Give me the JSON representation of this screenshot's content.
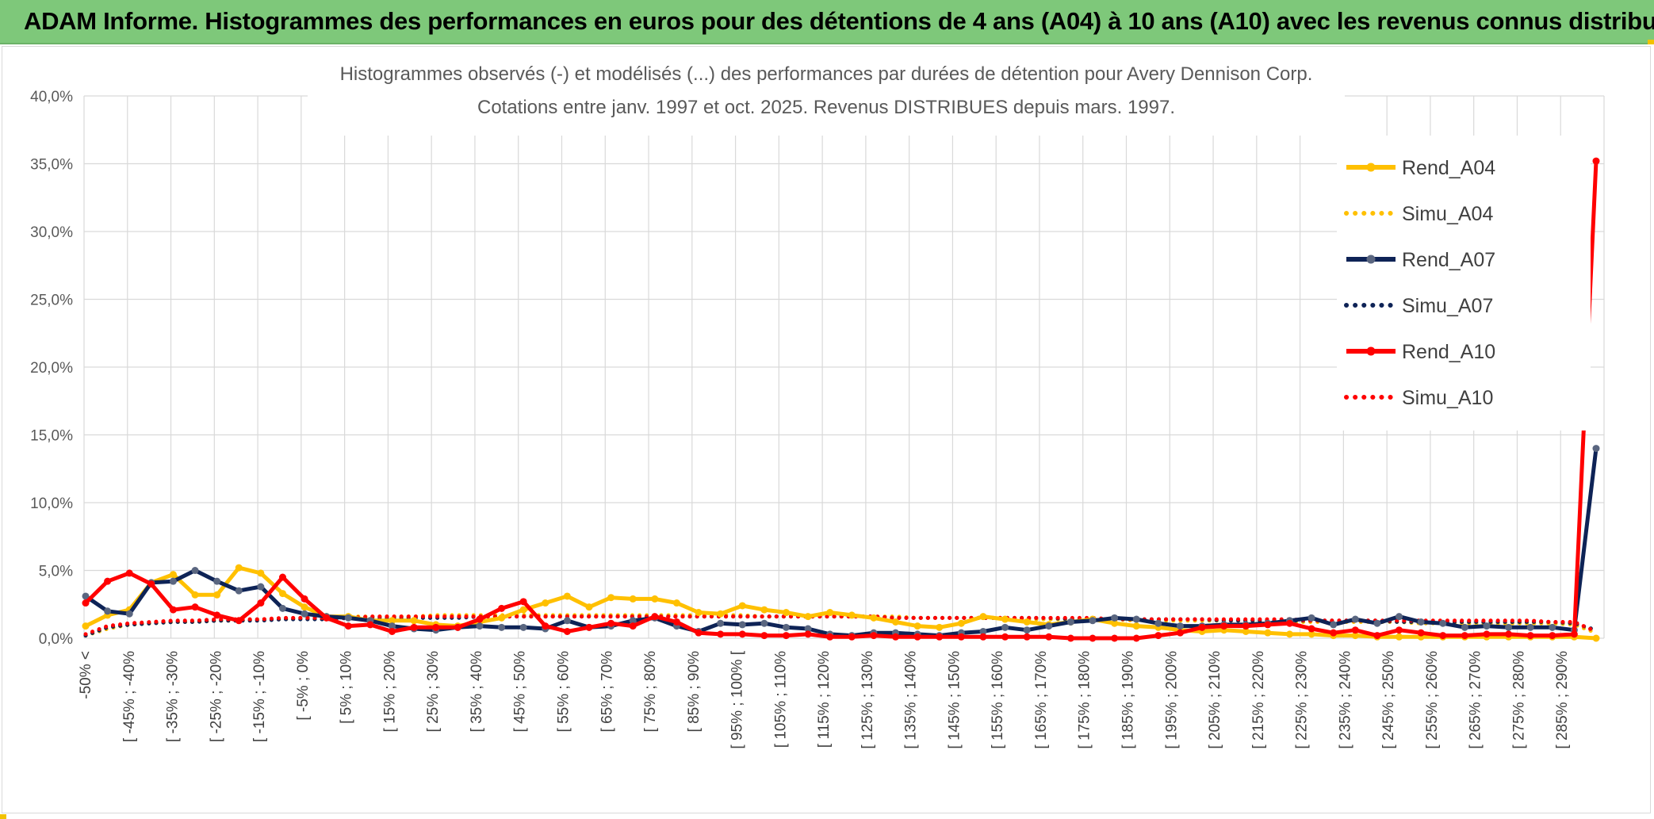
{
  "banner": {
    "title": "ADAM Informe. Histogrammes des performances en euros pour des détentions de 4 ans (A04) à 10 ans (A10) avec les revenus connus distribués"
  },
  "colors": {
    "banner_bg": "#7ec87a",
    "A04": "#ffc000",
    "A07": "#0e2356",
    "A07_marker": "#5a6680",
    "A10": "#ff0000"
  },
  "chart_data": {
    "type": "line",
    "title": "Histogrammes observés (-) et modélisés (...) des performances par durées de détention pour Avery Dennison Corp.",
    "subtitle": "Cotations entre janv. 1997 et oct. 2025. Revenus DISTRIBUES depuis mars. 1997.",
    "ylim": [
      0,
      40
    ],
    "yticks": [
      "0,0%",
      "5,0%",
      "10,0%",
      "15,0%",
      "20,0%",
      "25,0%",
      "30,0%",
      "35,0%",
      "40,0%"
    ],
    "xlabels": [
      "-50% <",
      "[ -45% ; -40%",
      "[ -35% ; -30%",
      "[ -25% ; -20%",
      "[ -15% ; -10%",
      "[ -5% ; 0%",
      "[ 5% ; 10%",
      "[ 15% ; 20%",
      "[ 25% ; 30%",
      "[ 35% ; 40%",
      "[ 45% ; 50%",
      "[ 55% ; 60%",
      "[ 65% ; 70%",
      "[ 75% ; 80%",
      "[ 85% ; 90%",
      "[ 95% ; 100% [",
      "[ 105% ; 110%",
      "[ 115% ; 120%",
      "[ 125% ; 130%",
      "[ 135% ; 140%",
      "[ 145% ; 150%",
      "[ 155% ; 160%",
      "[ 165% ; 170%",
      "[ 175% ; 180%",
      "[ 185% ; 190%",
      "[ 195% ; 200%",
      "[ 205% ; 210%",
      "[ 215% ; 220%",
      "[ 225% ; 230%",
      "[ 235% ; 240%",
      "[ 245% ; 250%",
      "[ 255% ; 260%",
      "[ 265% ; 270%",
      "[ 275% ; 280%",
      "[ 285% ; 290%"
    ],
    "legend_position": "right",
    "grid": true,
    "series": [
      {
        "name": "Rend_A04",
        "style": "solid",
        "color": "#ffc000",
        "values": [
          0.9,
          1.7,
          2.1,
          4.1,
          4.7,
          3.2,
          3.2,
          5.2,
          4.8,
          3.3,
          2.3,
          1.6,
          1.6,
          1.3,
          1.3,
          1.3,
          1.0,
          0.9,
          1.2,
          1.5,
          2.1,
          2.6,
          3.1,
          2.3,
          3.0,
          2.9,
          2.9,
          2.6,
          1.9,
          1.8,
          2.4,
          2.1,
          1.9,
          1.6,
          1.9,
          1.7,
          1.5,
          1.2,
          0.9,
          0.8,
          1.1,
          1.6,
          1.4,
          1.2,
          1.0,
          1.2,
          1.4,
          1.1,
          0.9,
          0.8,
          0.6,
          0.5,
          0.6,
          0.5,
          0.4,
          0.3,
          0.3,
          0.2,
          0.2,
          0.1,
          0.1,
          0.1,
          0.1,
          0.1,
          0.1,
          0.1,
          0.1,
          0.1,
          0.1,
          0.0
        ]
      },
      {
        "name": "Simu_A04",
        "style": "dotted",
        "color": "#ffc000",
        "values": [
          0.2,
          0.7,
          1.0,
          1.1,
          1.2,
          1.2,
          1.3,
          1.3,
          1.4,
          1.4,
          1.5,
          1.5,
          1.6,
          1.6,
          1.6,
          1.6,
          1.7,
          1.7,
          1.7,
          1.7,
          1.7,
          1.7,
          1.7,
          1.7,
          1.7,
          1.7,
          1.7,
          1.7,
          1.7,
          1.7,
          1.7,
          1.6,
          1.6,
          1.6,
          1.6,
          1.6,
          1.6,
          1.6,
          1.5,
          1.5,
          1.5,
          1.5,
          1.5,
          1.4,
          1.4,
          1.4,
          1.4,
          1.4,
          1.3,
          1.3,
          1.3,
          1.3,
          1.3,
          1.3,
          1.2,
          1.2,
          1.2,
          1.2,
          1.2,
          1.2,
          1.2,
          1.1,
          1.1,
          1.1,
          1.1,
          1.1,
          1.1,
          1.1,
          1.0,
          0.4
        ]
      },
      {
        "name": "Rend_A07",
        "style": "solid",
        "color": "#0e2356",
        "values": [
          3.1,
          2.0,
          1.8,
          4.1,
          4.2,
          5.0,
          4.2,
          3.5,
          3.8,
          2.2,
          1.8,
          1.6,
          1.5,
          1.3,
          0.9,
          0.7,
          0.6,
          0.8,
          0.9,
          0.8,
          0.8,
          0.7,
          1.3,
          0.8,
          0.9,
          1.3,
          1.5,
          0.9,
          0.5,
          1.1,
          1.0,
          1.1,
          0.8,
          0.7,
          0.3,
          0.2,
          0.4,
          0.4,
          0.3,
          0.2,
          0.4,
          0.5,
          0.8,
          0.6,
          0.9,
          1.2,
          1.3,
          1.5,
          1.4,
          1.1,
          0.9,
          0.9,
          1.0,
          1.0,
          1.1,
          1.3,
          1.5,
          1.0,
          1.4,
          1.1,
          1.6,
          1.2,
          1.1,
          0.8,
          0.9,
          0.8,
          0.8,
          0.8,
          0.6,
          14.0
        ]
      },
      {
        "name": "Simu_A07",
        "style": "dotted",
        "color": "#0e2356",
        "values": [
          0.2,
          0.8,
          1.0,
          1.1,
          1.2,
          1.2,
          1.3,
          1.3,
          1.3,
          1.4,
          1.4,
          1.4,
          1.5,
          1.5,
          1.5,
          1.5,
          1.5,
          1.5,
          1.6,
          1.6,
          1.6,
          1.6,
          1.6,
          1.6,
          1.6,
          1.6,
          1.6,
          1.6,
          1.6,
          1.6,
          1.6,
          1.6,
          1.6,
          1.6,
          1.6,
          1.6,
          1.6,
          1.5,
          1.5,
          1.5,
          1.5,
          1.5,
          1.5,
          1.5,
          1.5,
          1.4,
          1.4,
          1.4,
          1.4,
          1.4,
          1.4,
          1.4,
          1.3,
          1.3,
          1.3,
          1.3,
          1.3,
          1.3,
          1.3,
          1.3,
          1.2,
          1.2,
          1.2,
          1.2,
          1.2,
          1.2,
          1.2,
          1.2,
          1.1,
          0.6
        ]
      },
      {
        "name": "Rend_A10",
        "style": "solid",
        "color": "#ff0000",
        "values": [
          2.6,
          4.2,
          4.8,
          4.0,
          2.1,
          2.3,
          1.7,
          1.3,
          2.6,
          4.5,
          2.9,
          1.5,
          0.9,
          1.0,
          0.5,
          0.8,
          0.8,
          0.8,
          1.4,
          2.2,
          2.7,
          0.9,
          0.5,
          0.8,
          1.1,
          0.9,
          1.6,
          1.2,
          0.4,
          0.3,
          0.3,
          0.2,
          0.2,
          0.3,
          0.1,
          0.1,
          0.2,
          0.1,
          0.1,
          0.1,
          0.1,
          0.1,
          0.1,
          0.1,
          0.1,
          0.0,
          0.0,
          0.0,
          0.0,
          0.2,
          0.4,
          0.8,
          0.9,
          0.9,
          1.0,
          1.1,
          0.7,
          0.4,
          0.6,
          0.2,
          0.6,
          0.4,
          0.2,
          0.2,
          0.3,
          0.3,
          0.2,
          0.2,
          0.3,
          35.2
        ]
      },
      {
        "name": "Simu_A10",
        "style": "dotted",
        "color": "#ff0000",
        "values": [
          0.3,
          0.9,
          1.1,
          1.2,
          1.3,
          1.3,
          1.4,
          1.4,
          1.4,
          1.5,
          1.5,
          1.5,
          1.5,
          1.6,
          1.6,
          1.6,
          1.6,
          1.6,
          1.6,
          1.6,
          1.6,
          1.6,
          1.6,
          1.6,
          1.6,
          1.6,
          1.6,
          1.6,
          1.6,
          1.6,
          1.6,
          1.6,
          1.6,
          1.6,
          1.6,
          1.6,
          1.6,
          1.5,
          1.5,
          1.5,
          1.5,
          1.5,
          1.5,
          1.5,
          1.5,
          1.5,
          1.5,
          1.4,
          1.4,
          1.4,
          1.4,
          1.4,
          1.4,
          1.4,
          1.4,
          1.4,
          1.3,
          1.3,
          1.3,
          1.3,
          1.3,
          1.3,
          1.3,
          1.3,
          1.3,
          1.3,
          1.3,
          1.2,
          1.2,
          0.5
        ]
      }
    ]
  }
}
